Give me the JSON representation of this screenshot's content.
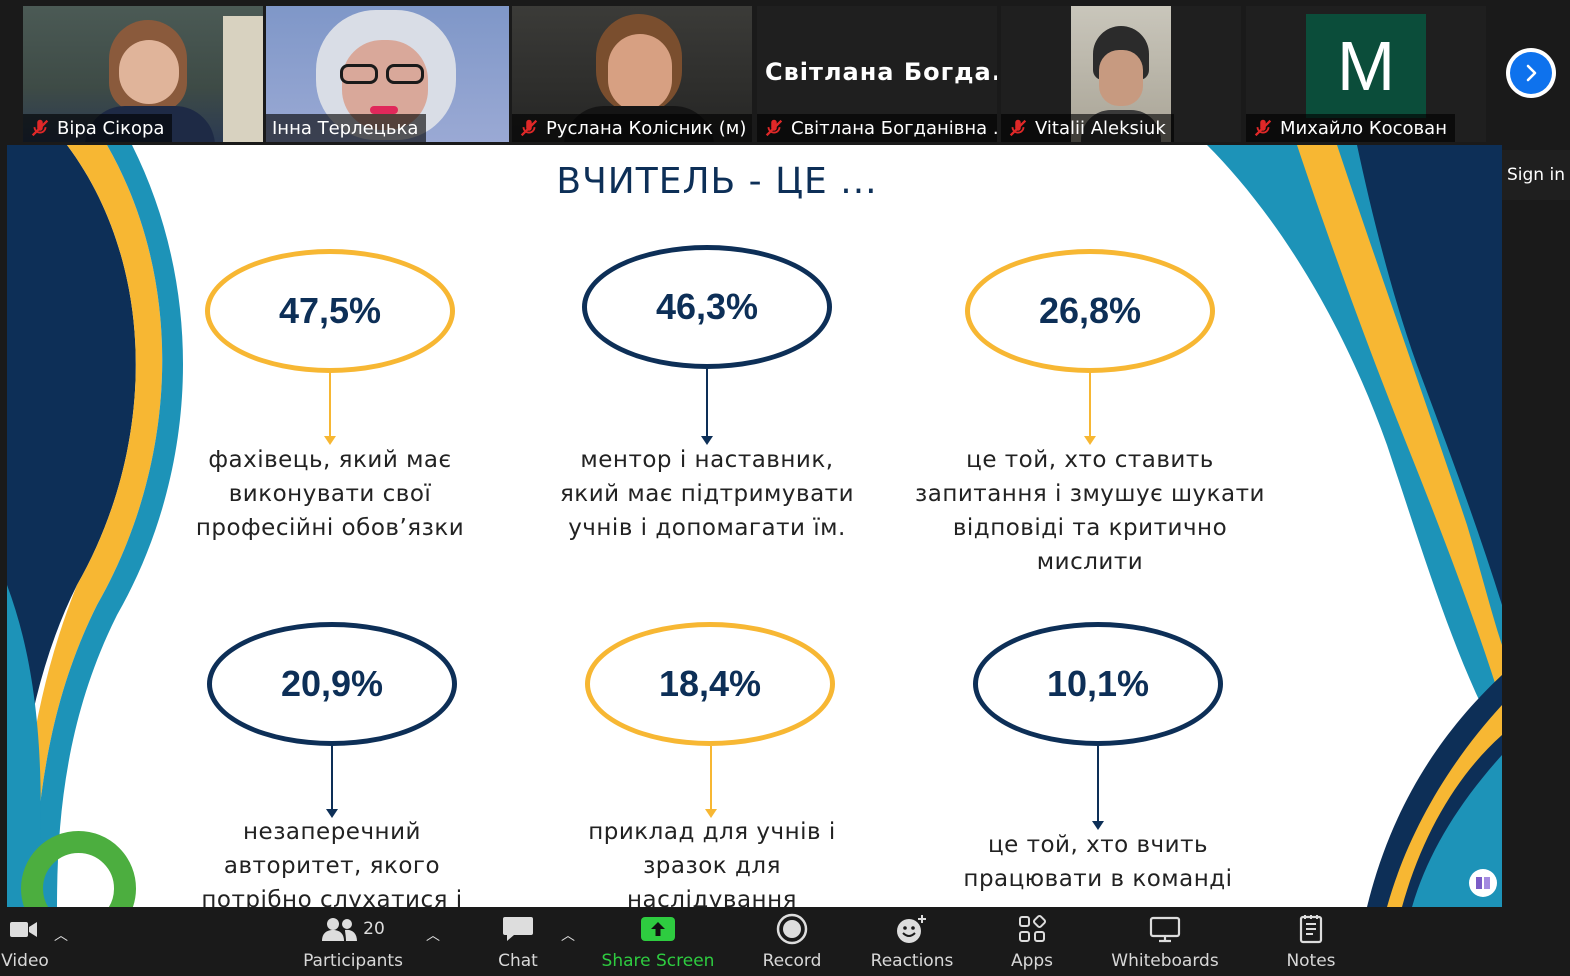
{
  "participants": [
    {
      "name": "Віра Сікора",
      "muted": true
    },
    {
      "name": "Інна Терлецька",
      "muted": false,
      "active": true
    },
    {
      "name": "Руслана Колісник (м)",
      "muted": true
    },
    {
      "name": "Світлана Богданівна ...",
      "muted": true,
      "display_name": "Світлана  Богда..."
    },
    {
      "name": "Vitalii Aleksiuk",
      "muted": true
    },
    {
      "name": "Михайло Косован",
      "muted": true,
      "avatar_letter": "M"
    }
  ],
  "sign_in_label": "Sign in",
  "slide": {
    "title": "ВЧИТЕЛЬ - ЦЕ ...",
    "stats": [
      {
        "value": "47,5%",
        "color": "gold",
        "lines": [
          "фахівець, який має",
          "виконувати свої",
          "професійні обов’язки"
        ]
      },
      {
        "value": "46,3%",
        "color": "navy",
        "lines": [
          "ментор і наставник,",
          "який має підтримувати",
          "учнів і допомагати їм."
        ]
      },
      {
        "value": "26,8%",
        "color": "gold",
        "lines": [
          "це той, хто ставить",
          "запитання і змушує шукати",
          "відповіді та критично",
          "мислити"
        ]
      },
      {
        "value": "20,9%",
        "color": "navy",
        "lines": [
          "незаперечний",
          "авторитет, якого",
          "потрібно слухатися і"
        ]
      },
      {
        "value": "18,4%",
        "color": "gold",
        "lines": [
          "приклад для учнів і",
          "зразок для",
          "наслідування"
        ]
      },
      {
        "value": "10,1%",
        "color": "navy",
        "lines": [
          "це той, хто вчить",
          "працювати в команді"
        ]
      }
    ]
  },
  "toolbar": {
    "video_label": "Video",
    "participants_label": "Participants",
    "participants_count": "20",
    "chat_label": "Chat",
    "share_label": "Share Screen",
    "record_label": "Record",
    "reactions_label": "Reactions",
    "apps_label": "Apps",
    "whiteboards_label": "Whiteboards",
    "notes_label": "Notes"
  },
  "colors": {
    "gold": "#f7b733",
    "navy": "#0d2f57",
    "teal": "#1d93b8",
    "share_green": "#2ecc40",
    "zoom_blue": "#0e72ed"
  }
}
